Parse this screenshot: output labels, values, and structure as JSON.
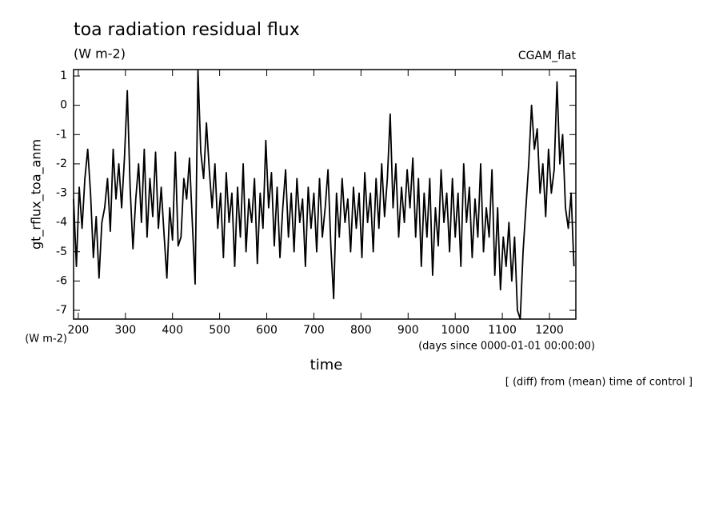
{
  "chart_data": {
    "type": "line",
    "title": "toa radiation residual flux",
    "subtitle": "(W m-2)",
    "dataset": "CGAM_flat",
    "ylabel": "gt_rflux_toa_anm",
    "y_units": "(W m-2)",
    "xlabel": "time",
    "x_units": "(days since 0000-01-01 00:00:00)",
    "annotation": "[ (diff) from (mean) time of control ]",
    "xlim": [
      190,
      1256
    ],
    "ylim": [
      -7.3,
      1.22
    ],
    "xticks": [
      200,
      300,
      400,
      500,
      600,
      700,
      800,
      900,
      1000,
      1100,
      1200
    ],
    "yticks": [
      -7,
      -6,
      -5,
      -4,
      -3,
      -2,
      -1,
      0,
      1
    ],
    "series": [
      {
        "color": "#000000",
        "x": [
          190,
          196,
          202,
          208,
          214,
          220,
          226,
          232,
          238,
          244,
          250,
          256,
          262,
          268,
          274,
          280,
          286,
          292,
          298,
          304,
          310,
          316,
          322,
          328,
          334,
          340,
          346,
          352,
          358,
          364,
          370,
          376,
          382,
          388,
          394,
          400,
          406,
          412,
          418,
          424,
          430,
          436,
          442,
          448,
          454,
          460,
          466,
          472,
          478,
          484,
          490,
          496,
          502,
          508,
          514,
          520,
          526,
          532,
          538,
          544,
          550,
          556,
          562,
          568,
          574,
          580,
          586,
          592,
          598,
          604,
          610,
          616,
          622,
          628,
          634,
          640,
          646,
          652,
          658,
          664,
          670,
          676,
          682,
          688,
          694,
          700,
          706,
          712,
          718,
          724,
          730,
          736,
          742,
          748,
          754,
          760,
          766,
          772,
          778,
          784,
          790,
          796,
          802,
          808,
          814,
          820,
          826,
          832,
          838,
          844,
          850,
          856,
          862,
          868,
          874,
          880,
          886,
          892,
          898,
          904,
          910,
          916,
          922,
          928,
          934,
          940,
          946,
          952,
          958,
          964,
          970,
          976,
          982,
          988,
          994,
          1000,
          1006,
          1012,
          1018,
          1024,
          1030,
          1036,
          1042,
          1048,
          1054,
          1060,
          1066,
          1072,
          1078,
          1084,
          1090,
          1096,
          1102,
          1108,
          1114,
          1120,
          1126,
          1132,
          1138,
          1144,
          1150,
          1156,
          1162,
          1168,
          1174,
          1180,
          1186,
          1192,
          1198,
          1204,
          1210,
          1216,
          1222,
          1228,
          1234,
          1240,
          1246,
          1252
        ],
        "values": [
          -3.2,
          -5.5,
          -2.8,
          -4.2,
          -2.5,
          -1.5,
          -3.0,
          -5.2,
          -3.8,
          -5.9,
          -4.0,
          -3.5,
          -2.5,
          -4.3,
          -1.5,
          -3.2,
          -2.0,
          -3.5,
          -1.8,
          0.5,
          -2.8,
          -4.9,
          -3.2,
          -2.0,
          -4.0,
          -1.5,
          -4.5,
          -2.5,
          -3.8,
          -1.6,
          -4.2,
          -2.8,
          -4.4,
          -5.9,
          -3.5,
          -4.6,
          -1.6,
          -4.8,
          -4.5,
          -2.5,
          -3.2,
          -1.8,
          -4.0,
          -6.1,
          1.2,
          -1.6,
          -2.5,
          -0.6,
          -2.2,
          -3.5,
          -2.0,
          -4.2,
          -3.0,
          -5.2,
          -2.3,
          -4.0,
          -3.0,
          -5.5,
          -2.8,
          -4.5,
          -2.0,
          -5.0,
          -3.2,
          -4.0,
          -2.5,
          -5.4,
          -3.0,
          -4.2,
          -1.2,
          -3.5,
          -2.3,
          -4.8,
          -2.8,
          -5.2,
          -3.5,
          -2.2,
          -4.5,
          -3.0,
          -5.0,
          -2.5,
          -4.0,
          -3.2,
          -5.5,
          -2.8,
          -4.2,
          -3.0,
          -5.0,
          -2.5,
          -4.5,
          -3.5,
          -2.2,
          -4.8,
          -6.6,
          -3.0,
          -4.5,
          -2.5,
          -4.0,
          -3.2,
          -5.0,
          -2.8,
          -4.2,
          -3.0,
          -5.2,
          -2.3,
          -4.0,
          -3.0,
          -5.0,
          -2.5,
          -4.2,
          -2.0,
          -3.8,
          -2.5,
          -0.3,
          -3.5,
          -2.0,
          -4.5,
          -2.8,
          -4.0,
          -2.2,
          -3.5,
          -1.8,
          -4.5,
          -2.5,
          -5.5,
          -3.0,
          -4.5,
          -2.5,
          -5.8,
          -3.5,
          -4.8,
          -2.2,
          -4.0,
          -3.0,
          -5.0,
          -2.5,
          -4.5,
          -3.0,
          -5.5,
          -2.0,
          -4.0,
          -2.8,
          -5.2,
          -3.2,
          -4.5,
          -2.0,
          -5.0,
          -3.5,
          -4.5,
          -2.2,
          -5.8,
          -3.5,
          -6.3,
          -4.5,
          -5.5,
          -4.0,
          -6.0,
          -4.5,
          -7.0,
          -7.3,
          -5.0,
          -3.5,
          -2.0,
          0.0,
          -1.5,
          -0.8,
          -3.0,
          -2.0,
          -3.8,
          -1.5,
          -3.0,
          -2.2,
          0.8,
          -2.0,
          -1.0,
          -3.5,
          -4.2,
          -3.0,
          -5.5
        ]
      }
    ]
  }
}
